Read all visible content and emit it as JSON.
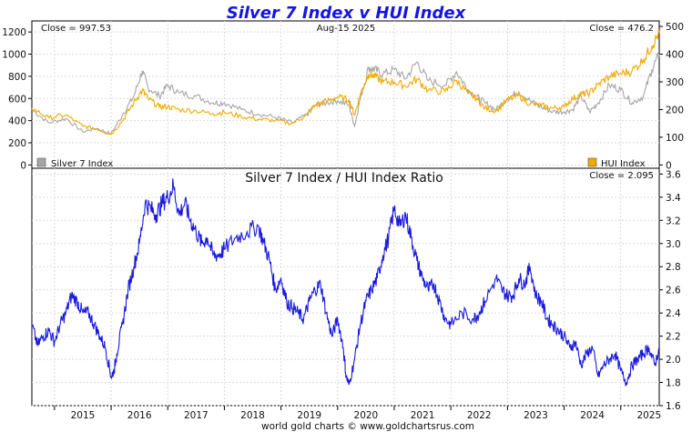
{
  "chart_data": {
    "type": "line",
    "title": "Silver 7 Index v HUI Index",
    "date": "Aug-15  2025",
    "footer": "world gold charts © www.goldchartsrus.com",
    "x_labels": [
      "2015",
      "2016",
      "2017",
      "2018",
      "2019",
      "2020",
      "2021",
      "2022",
      "2023",
      "2024",
      "2025"
    ],
    "x_range": [
      2014.6,
      2025.68
    ],
    "top": {
      "left_axis": {
        "range": [
          -30,
          1300
        ],
        "ticks": [
          0,
          200,
          400,
          600,
          800,
          1000,
          1200
        ]
      },
      "right_axis": {
        "range": [
          -12,
          520
        ],
        "ticks": [
          0,
          100,
          200,
          300,
          400,
          500
        ]
      },
      "close_left": "Close = 997.53",
      "close_right": "Close = 476.2",
      "series": [
        {
          "name": "Silver 7 Index",
          "axis": "left",
          "color": "#a6a6a6",
          "legend": "bottom-left",
          "x": [
            2014.6,
            2014.9,
            2015.2,
            2015.5,
            2015.75,
            2016.0,
            2016.2,
            2016.4,
            2016.55,
            2016.65,
            2016.85,
            2017.0,
            2017.2,
            2017.5,
            2017.8,
            2018.0,
            2018.3,
            2018.6,
            2018.9,
            2019.2,
            2019.45,
            2019.6,
            2019.8,
            2020.0,
            2020.2,
            2020.3,
            2020.4,
            2020.55,
            2020.65,
            2020.8,
            2021.0,
            2021.2,
            2021.4,
            2021.6,
            2021.9,
            2022.1,
            2022.3,
            2022.45,
            2022.6,
            2022.8,
            2023.0,
            2023.2,
            2023.4,
            2023.6,
            2023.8,
            2024.0,
            2024.15,
            2024.3,
            2024.45,
            2024.6,
            2024.8,
            2025.0,
            2025.2,
            2025.4,
            2025.55,
            2025.68
          ],
          "values": [
            500,
            380,
            420,
            300,
            330,
            280,
            450,
            620,
            850,
            700,
            620,
            720,
            650,
            620,
            560,
            560,
            500,
            460,
            430,
            380,
            450,
            540,
            560,
            580,
            540,
            350,
            600,
            880,
            860,
            820,
            860,
            780,
            930,
            760,
            720,
            840,
            680,
            620,
            560,
            500,
            600,
            660,
            580,
            520,
            480,
            480,
            500,
            620,
            480,
            560,
            720,
            680,
            560,
            620,
            860,
            998
          ]
        },
        {
          "name": "HUI Index",
          "axis": "right",
          "color": "#f2a900",
          "legend": "bottom-right",
          "x": [
            2014.6,
            2014.9,
            2015.2,
            2015.5,
            2015.75,
            2016.0,
            2016.2,
            2016.4,
            2016.55,
            2016.65,
            2016.85,
            2017.0,
            2017.2,
            2017.5,
            2017.8,
            2018.0,
            2018.3,
            2018.6,
            2018.9,
            2019.2,
            2019.45,
            2019.6,
            2019.8,
            2020.0,
            2020.2,
            2020.3,
            2020.4,
            2020.55,
            2020.65,
            2020.8,
            2021.0,
            2021.2,
            2021.4,
            2021.6,
            2021.9,
            2022.1,
            2022.3,
            2022.45,
            2022.6,
            2022.8,
            2023.0,
            2023.2,
            2023.4,
            2023.6,
            2023.8,
            2024.0,
            2024.15,
            2024.3,
            2024.45,
            2024.6,
            2024.8,
            2025.0,
            2025.2,
            2025.4,
            2025.55,
            2025.68
          ],
          "values": [
            205,
            170,
            180,
            140,
            130,
            110,
            160,
            225,
            270,
            240,
            210,
            210,
            200,
            195,
            185,
            190,
            175,
            165,
            160,
            150,
            180,
            215,
            230,
            245,
            235,
            180,
            255,
            330,
            320,
            300,
            300,
            285,
            310,
            270,
            265,
            305,
            260,
            240,
            205,
            195,
            235,
            250,
            220,
            215,
            205,
            210,
            240,
            255,
            260,
            290,
            320,
            330,
            340,
            380,
            430,
            476
          ]
        }
      ]
    },
    "bottom": {
      "title": "Silver 7 Index  /  HUI Index Ratio",
      "close": "Close = 2.095",
      "axis": {
        "range": [
          1.6,
          3.65
        ],
        "ticks": [
          1.6,
          1.8,
          2.0,
          2.2,
          2.4,
          2.6,
          2.8,
          3.0,
          3.2,
          3.4,
          3.6
        ]
      },
      "series": {
        "name": "Silver 7 Index / HUI Index Ratio",
        "color": "#1a1ae0",
        "x": [
          2014.6,
          2014.7,
          2014.8,
          2014.9,
          2015.0,
          2015.1,
          2015.2,
          2015.3,
          2015.4,
          2015.5,
          2015.6,
          2015.7,
          2015.8,
          2015.9,
          2016.0,
          2016.05,
          2016.1,
          2016.2,
          2016.3,
          2016.4,
          2016.5,
          2016.6,
          2016.7,
          2016.8,
          2016.9,
          2017.0,
          2017.1,
          2017.2,
          2017.3,
          2017.4,
          2017.5,
          2017.6,
          2017.7,
          2017.8,
          2017.9,
          2018.0,
          2018.2,
          2018.4,
          2018.6,
          2018.7,
          2018.8,
          2018.9,
          2019.0,
          2019.1,
          2019.2,
          2019.3,
          2019.4,
          2019.5,
          2019.6,
          2019.7,
          2019.8,
          2019.9,
          2020.0,
          2020.1,
          2020.15,
          2020.2,
          2020.3,
          2020.4,
          2020.5,
          2020.6,
          2020.7,
          2020.8,
          2020.9,
          2021.0,
          2021.1,
          2021.2,
          2021.3,
          2021.4,
          2021.5,
          2021.6,
          2021.7,
          2021.8,
          2021.9,
          2022.0,
          2022.2,
          2022.4,
          2022.5,
          2022.6,
          2022.8,
          2022.9,
          2023.0,
          2023.1,
          2023.2,
          2023.3,
          2023.4,
          2023.5,
          2023.6,
          2023.7,
          2023.8,
          2023.9,
          2024.0,
          2024.1,
          2024.2,
          2024.3,
          2024.4,
          2024.5,
          2024.6,
          2024.7,
          2024.8,
          2024.9,
          2025.0,
          2025.1,
          2025.2,
          2025.3,
          2025.4,
          2025.5,
          2025.6,
          2025.68
        ],
        "values": [
          2.3,
          2.12,
          2.2,
          2.25,
          2.15,
          2.3,
          2.4,
          2.55,
          2.5,
          2.4,
          2.4,
          2.3,
          2.2,
          2.1,
          1.85,
          1.9,
          2.05,
          2.3,
          2.6,
          2.8,
          3.0,
          3.35,
          3.3,
          3.25,
          3.35,
          3.4,
          3.5,
          3.25,
          3.35,
          3.2,
          3.1,
          3.0,
          3.05,
          2.9,
          2.9,
          2.95,
          3.05,
          3.1,
          3.15,
          3.0,
          2.85,
          2.6,
          2.7,
          2.5,
          2.45,
          2.4,
          2.35,
          2.5,
          2.6,
          2.65,
          2.4,
          2.2,
          2.35,
          2.1,
          1.85,
          1.78,
          2.0,
          2.3,
          2.5,
          2.6,
          2.7,
          2.9,
          3.05,
          3.3,
          3.15,
          3.25,
          3.05,
          2.85,
          2.7,
          2.6,
          2.65,
          2.5,
          2.35,
          2.3,
          2.4,
          2.35,
          2.4,
          2.5,
          2.7,
          2.6,
          2.55,
          2.55,
          2.7,
          2.65,
          2.8,
          2.55,
          2.5,
          2.35,
          2.3,
          2.25,
          2.2,
          2.1,
          2.15,
          1.95,
          2.05,
          2.1,
          1.85,
          1.95,
          2.0,
          2.05,
          1.9,
          1.8,
          1.95,
          2.0,
          2.05,
          2.1,
          1.95,
          2.095
        ]
      }
    }
  }
}
